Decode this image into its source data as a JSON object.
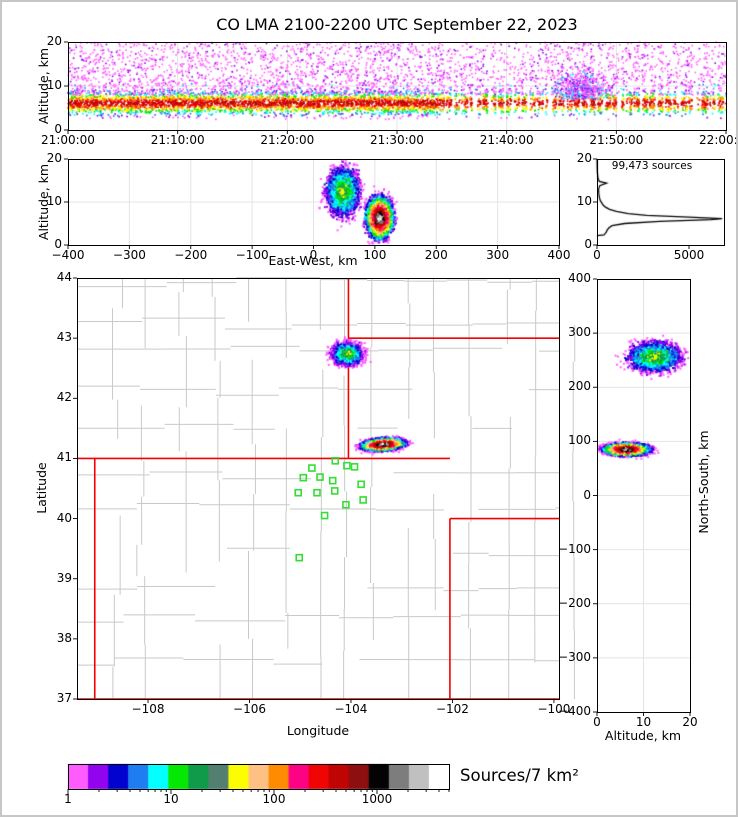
{
  "title": "CO LMA 2100-2200 UTC September 22, 2023",
  "palette": [
    "#ff5cff",
    "#9203ee",
    "#0303cf",
    "#1f7df2",
    "#03ffff",
    "#04e804",
    "#0f9b49",
    "#537f70",
    "#fdfd02",
    "#ffc183",
    "#ff8b03",
    "#fe0285",
    "#f10404",
    "#c00404",
    "#8d0f0f",
    "#030303",
    "#7d7d7d",
    "#c0c0c0",
    "#ffffff"
  ],
  "colors": {
    "state_border": "#f40000",
    "county": "#c9c9c9",
    "station": "#35dd35",
    "grid": "#e4e4e4",
    "curve": "#000000"
  },
  "panels": {
    "time_height": {
      "ylabel": "Altitude, km",
      "ytick_labels": [
        "0",
        "10",
        "20"
      ],
      "xtick_labels": [
        "21:00:00",
        "21:10:00",
        "21:20:00",
        "21:30:00",
        "21:40:00",
        "21:50:00",
        "22:00:00"
      ]
    },
    "east_west": {
      "xlabel": "East-West, km",
      "ylabel": "Altitude, km",
      "xtick_labels": [
        "−400",
        "−300",
        "−200",
        "−100",
        "0",
        "100",
        "200",
        "300",
        "400"
      ],
      "ytick_labels": [
        "0",
        "10",
        "20"
      ]
    },
    "histogram": {
      "annotation": "99,473 sources",
      "xtick_labels": [
        "0",
        "5000"
      ],
      "ytick_labels": [
        "0",
        "10",
        "20"
      ]
    },
    "map": {
      "xlabel": "Longitude",
      "ylabel": "Latitude",
      "xtick_labels": [
        "−108",
        "−106",
        "−104",
        "−102",
        "−100"
      ],
      "ytick_labels": [
        "44",
        "43",
        "42",
        "41",
        "40",
        "39",
        "38",
        "37"
      ]
    },
    "north_south": {
      "xlabel": "Altitude, km",
      "ylabel": "North-South, km",
      "xtick_labels": [
        "0",
        "10",
        "20"
      ],
      "ytick_labels": [
        "400",
        "300",
        "200",
        "100",
        "0",
        "−100",
        "−200",
        "−300",
        "−400"
      ]
    }
  },
  "colorbar": {
    "label": "Sources/7 km²",
    "tick_labels": [
      "1",
      "10",
      "100",
      "1000"
    ],
    "scale": "log",
    "n_bins": 19
  },
  "chart_data": {
    "type": "scatter",
    "title": "CO LMA 2100-2200 UTC September 22, 2023",
    "total_sources": "99,473",
    "axes": {
      "time_utc_range": [
        "21:00:00",
        "22:00:00"
      ],
      "altitude_km_range": [
        0,
        20
      ],
      "east_west_km_range": [
        -400,
        400
      ],
      "north_south_km_range": [
        -400,
        400
      ],
      "map_lon_range": [
        -109.4,
        -99.9
      ],
      "map_lat_range": [
        37,
        44
      ],
      "histogram_count_range": [
        0,
        6900
      ],
      "colorbar_range": [
        1,
        4800
      ]
    },
    "storms": [
      {
        "id": "northern-storm",
        "lon": -104.07,
        "lat": 42.74,
        "lon_spread": 0.145,
        "lat_spread": 0.088,
        "east_west_km": 48,
        "ew_spread": 13,
        "north_south_km": 256,
        "ns_spread": 13,
        "alt_km": 12.4,
        "alt_spread": 2.7,
        "peak_bin": "yellow (~60 sources/7 km2)",
        "levels": [
          0,
          1,
          2,
          3,
          4,
          5,
          6,
          8
        ],
        "n": 2500
      },
      {
        "id": "southern-storm",
        "lon": -103.37,
        "lat": 41.23,
        "lon_spread": 0.2,
        "lat_spread": 0.048,
        "east_west_km": 108,
        "ew_spread": 10.5,
        "north_south_km": 85,
        "ns_spread": 5.5,
        "alt_km": 6.3,
        "alt_spread": 2.3,
        "peak_bin": "white (>3000 sources/7 km2)",
        "levels": [
          0,
          1,
          2,
          3,
          4,
          5,
          8,
          9,
          10,
          11,
          12,
          13,
          14,
          15,
          16,
          17,
          18
        ],
        "n": 3000
      }
    ],
    "time_band": {
      "band_alt_center_km": 6.1,
      "band_alt_spread_km": 1.35,
      "band_alt_limits_km": [
        2.35,
        10.8
      ],
      "high_scatter_alt_km": [
        8,
        20
      ],
      "striped_after_min": 34,
      "plume_center_min": 46.8,
      "levels": [
        0,
        1,
        3,
        4,
        5,
        8,
        10,
        12,
        13
      ]
    },
    "altitude_histogram": {
      "xmax": 6900,
      "points_alt_count": [
        [
          2.2,
          0
        ],
        [
          2.35,
          380
        ],
        [
          2.6,
          430
        ],
        [
          3.0,
          500
        ],
        [
          3.5,
          560
        ],
        [
          4.0,
          650
        ],
        [
          4.5,
          820
        ],
        [
          5.0,
          1500
        ],
        [
          5.5,
          3400
        ],
        [
          5.9,
          6200
        ],
        [
          6.15,
          6800
        ],
        [
          6.5,
          5000
        ],
        [
          6.9,
          2700
        ],
        [
          7.3,
          1700
        ],
        [
          7.8,
          1050
        ],
        [
          8.3,
          680
        ],
        [
          8.8,
          460
        ],
        [
          9.3,
          330
        ],
        [
          9.8,
          260
        ],
        [
          10.3,
          180
        ],
        [
          11,
          130
        ],
        [
          12,
          95
        ],
        [
          13,
          85
        ],
        [
          13.8,
          150
        ],
        [
          14.4,
          520
        ],
        [
          14.8,
          120
        ],
        [
          15.5,
          55
        ],
        [
          16.5,
          28
        ],
        [
          17.5,
          15
        ],
        [
          18.5,
          9
        ],
        [
          19.5,
          5
        ],
        [
          20,
          3
        ]
      ]
    },
    "stations_lon_lat": [
      [
        -104.31,
        40.96
      ],
      [
        -104.77,
        40.84
      ],
      [
        -104.08,
        40.88
      ],
      [
        -103.93,
        40.86
      ],
      [
        -104.61,
        40.69
      ],
      [
        -104.94,
        40.68
      ],
      [
        -104.36,
        40.63
      ],
      [
        -103.8,
        40.57
      ],
      [
        -105.04,
        40.43
      ],
      [
        -104.67,
        40.43
      ],
      [
        -104.32,
        40.46
      ],
      [
        -103.76,
        40.31
      ],
      [
        -104.1,
        40.23
      ],
      [
        -104.52,
        40.05
      ],
      [
        -105.02,
        39.35
      ]
    ],
    "state_borders_lonlat": [
      [
        -109.4,
        41,
        -102.05,
        41
      ],
      [
        -109.05,
        37,
        -109.05,
        41
      ],
      [
        -109.4,
        37,
        -99.9,
        37
      ],
      [
        -102.05,
        37,
        -102.05,
        40
      ],
      [
        -102.05,
        40,
        -99.9,
        40
      ],
      [
        -104.05,
        41,
        -104.05,
        44
      ],
      [
        -104.05,
        43,
        -99.9,
        43
      ]
    ]
  }
}
